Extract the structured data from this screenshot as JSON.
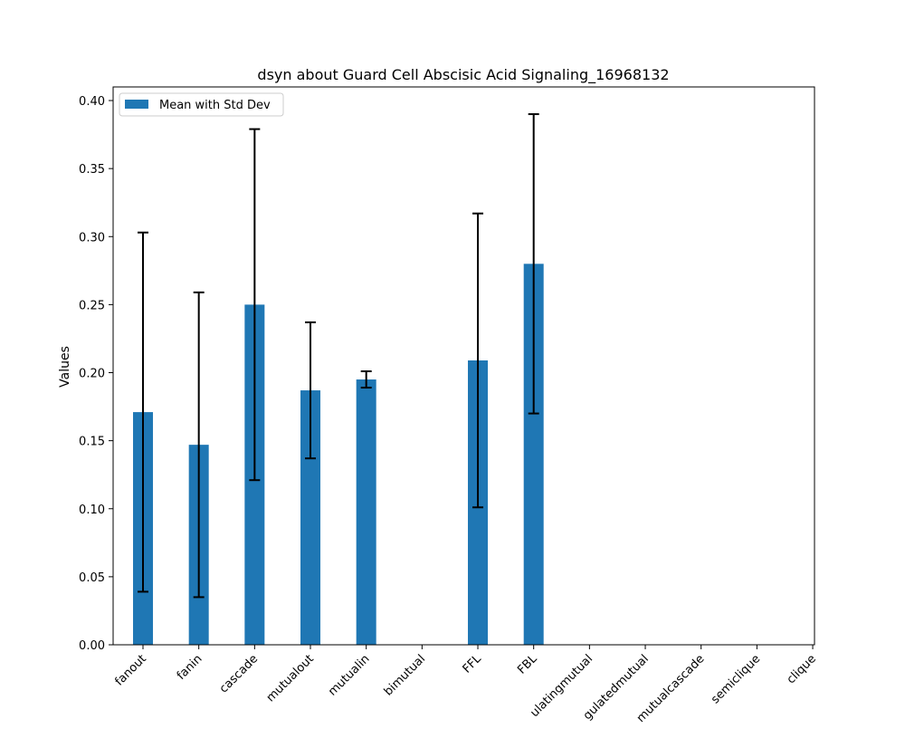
{
  "chart_data": {
    "type": "bar",
    "title": "dsyn about Guard Cell Abscisic Acid Signaling_16968132",
    "xlabel": "",
    "ylabel": "Values",
    "ylim": [
      0,
      0.41
    ],
    "yticks": [
      0.0,
      0.05,
      0.1,
      0.15,
      0.2,
      0.25,
      0.3,
      0.35,
      0.4
    ],
    "ytick_labels": [
      "0.00",
      "0.05",
      "0.10",
      "0.15",
      "0.20",
      "0.25",
      "0.30",
      "0.35",
      "0.40"
    ],
    "categories": [
      "fanout",
      "fanin",
      "cascade",
      "mutualout",
      "mutualin",
      "bimutual",
      "FFL",
      "FBL",
      "regulatingmutual",
      "regulatedmutual",
      "mutualcascade",
      "semiclique",
      "clique"
    ],
    "tick_labels_visible": [
      "fanout",
      "fanin",
      "cascade",
      "mutualout",
      "mutualin",
      "bimutual",
      "FFL",
      "FBL",
      "ulatingmutual",
      "gulatedmutual",
      "mutualcascade",
      "semiclique",
      "clique"
    ],
    "series": [
      {
        "name": "Mean with Std Dev",
        "color": "#1f77b4",
        "values": [
          0.171,
          0.147,
          0.25,
          0.187,
          0.195,
          null,
          0.209,
          0.28,
          null,
          null,
          null,
          null,
          null
        ],
        "errors": [
          0.132,
          0.112,
          0.129,
          0.05,
          0.006,
          null,
          0.108,
          0.11,
          null,
          null,
          null,
          null,
          null
        ]
      }
    ],
    "legend": {
      "placement": "top-left",
      "label": "Mean with Std Dev"
    },
    "grid": false
  }
}
